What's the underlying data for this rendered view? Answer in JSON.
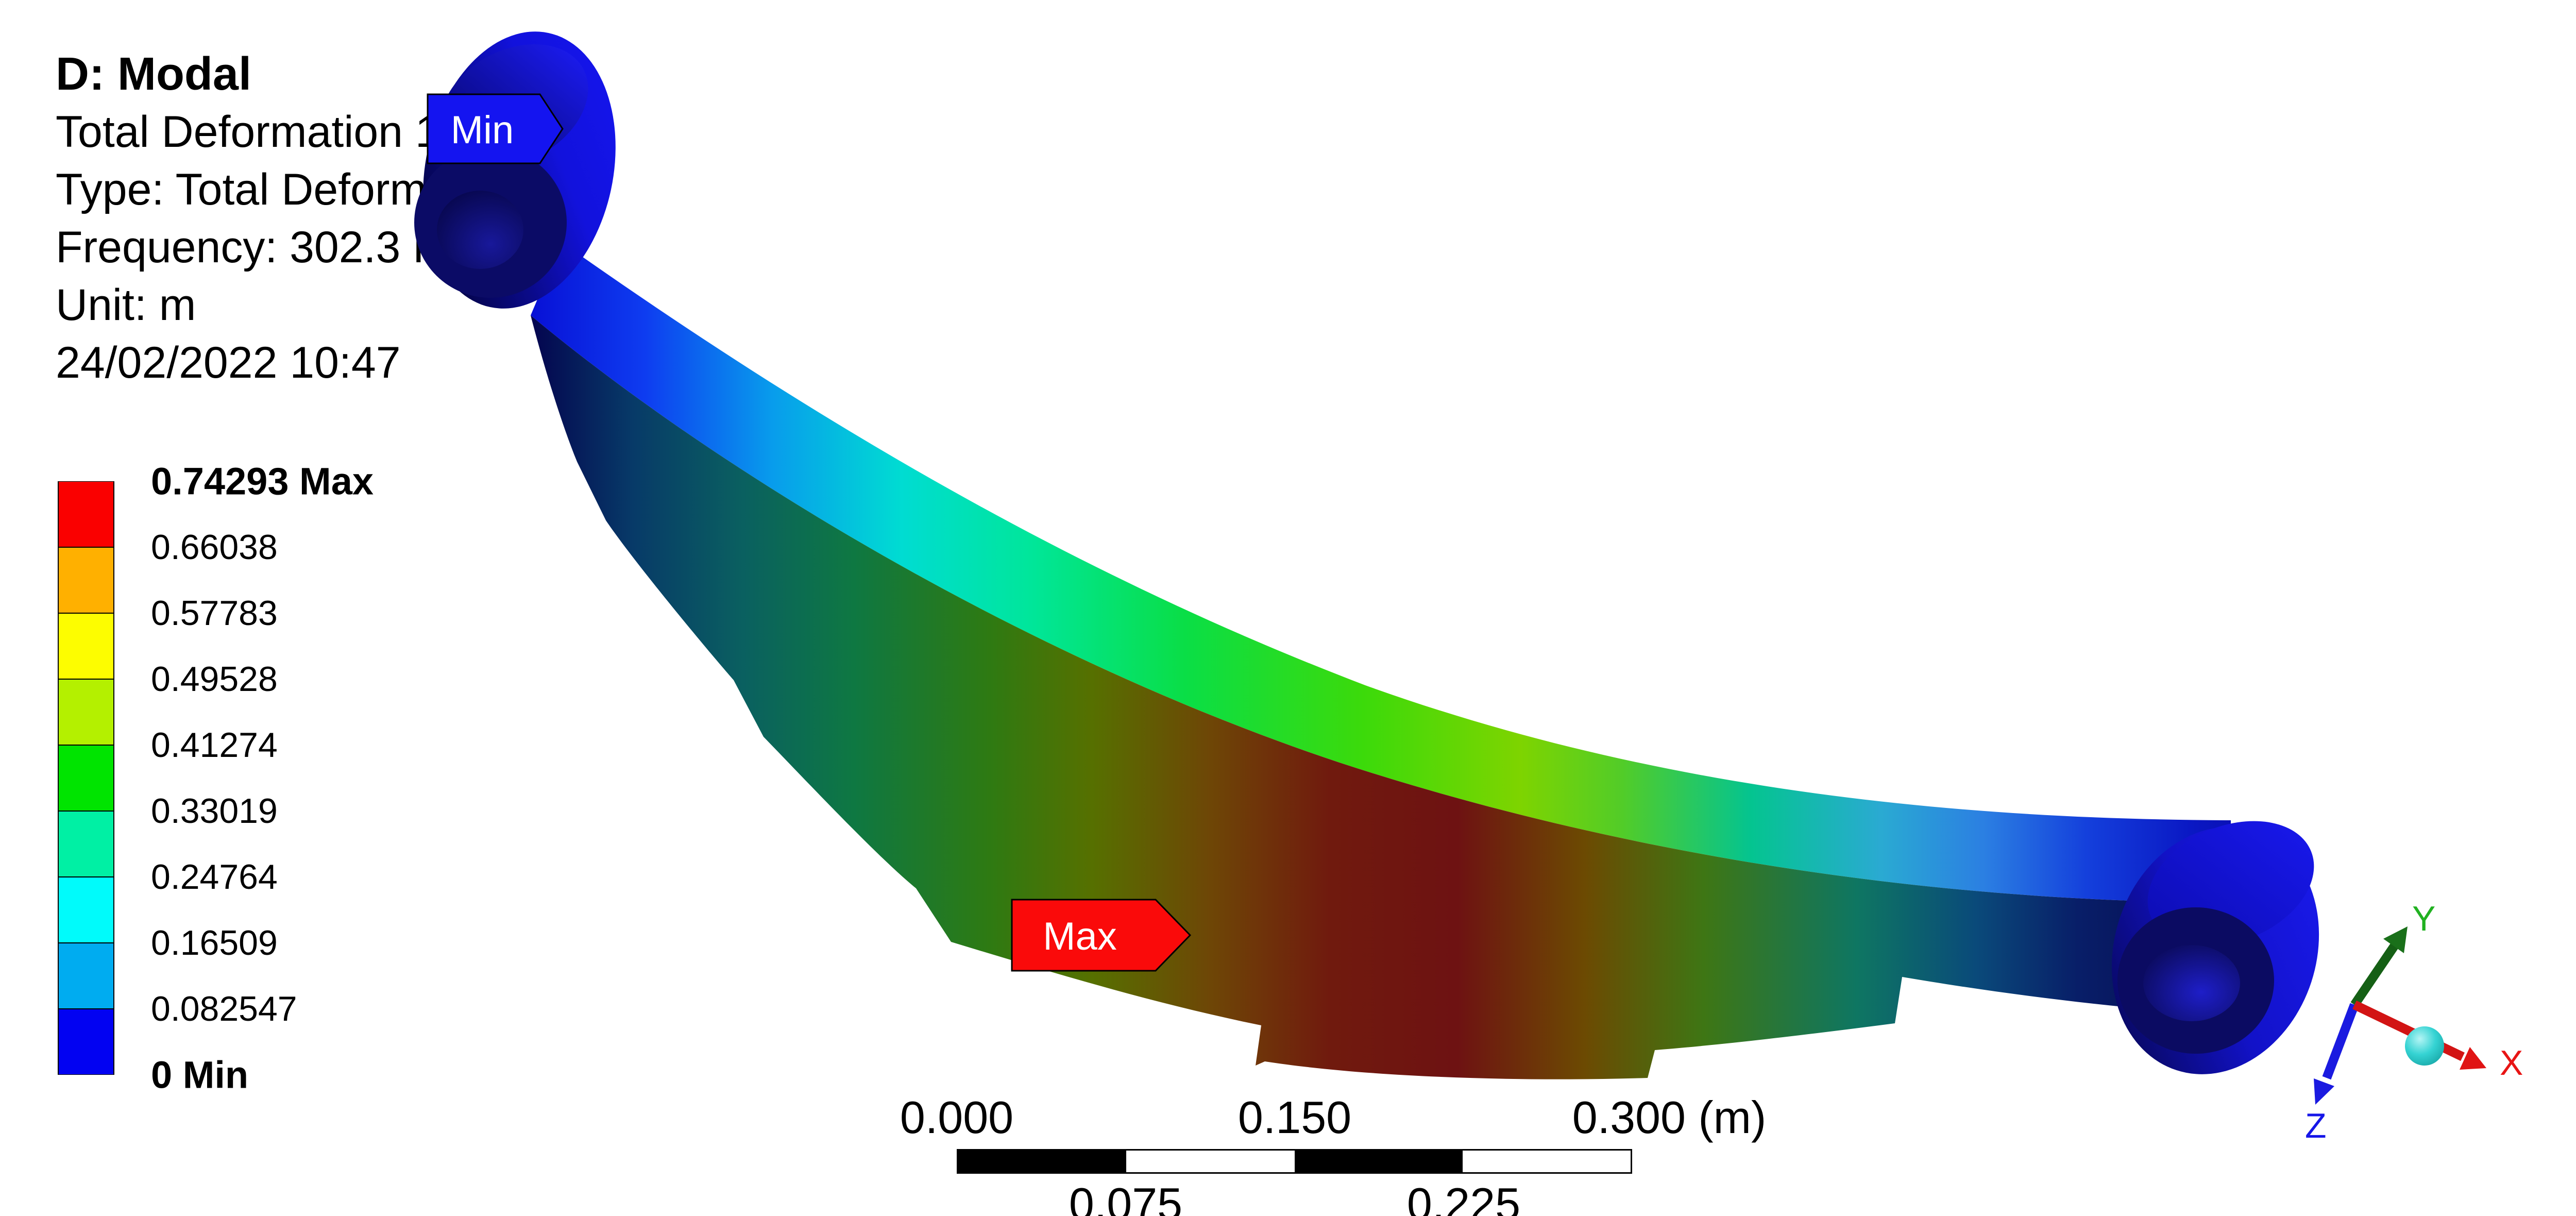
{
  "header": {
    "title": "D: Modal",
    "lines": [
      "Total Deformation 1",
      "Type: Total Deformation",
      "Frequency: 302.3 Hz",
      "Unit: m",
      "24/02/2022 10:47"
    ]
  },
  "legend": {
    "boundary_labels": [
      "0.74293 Max",
      "0.66038",
      "0.57783",
      "0.49528",
      "0.41274",
      "0.33019",
      "0.24764",
      "0.16509",
      "0.082547",
      "0 Min"
    ],
    "band_colors": [
      "#fa0000",
      "#ffb000",
      "#fdfd00",
      "#b4f000",
      "#00e400",
      "#00f0a4",
      "#00fbfb",
      "#00acf0",
      "#0202f2"
    ]
  },
  "annotations": {
    "min_label": "Min",
    "max_label": "Max",
    "min_color": "#1414f0",
    "max_color": "#fa0a0a"
  },
  "ruler": {
    "top_labels": [
      "0.000",
      "0.150",
      "0.300 (m)"
    ],
    "bottom_labels": [
      "0.075",
      "0.225"
    ],
    "segment_colors": [
      "#000000",
      "#ffffff",
      "#000000",
      "#ffffff"
    ]
  },
  "triad": {
    "axes": [
      {
        "label": "X",
        "color": "#e81414"
      },
      {
        "label": "Y",
        "color": "#21b121"
      },
      {
        "label": "Z",
        "color": "#1616e8"
      }
    ]
  }
}
